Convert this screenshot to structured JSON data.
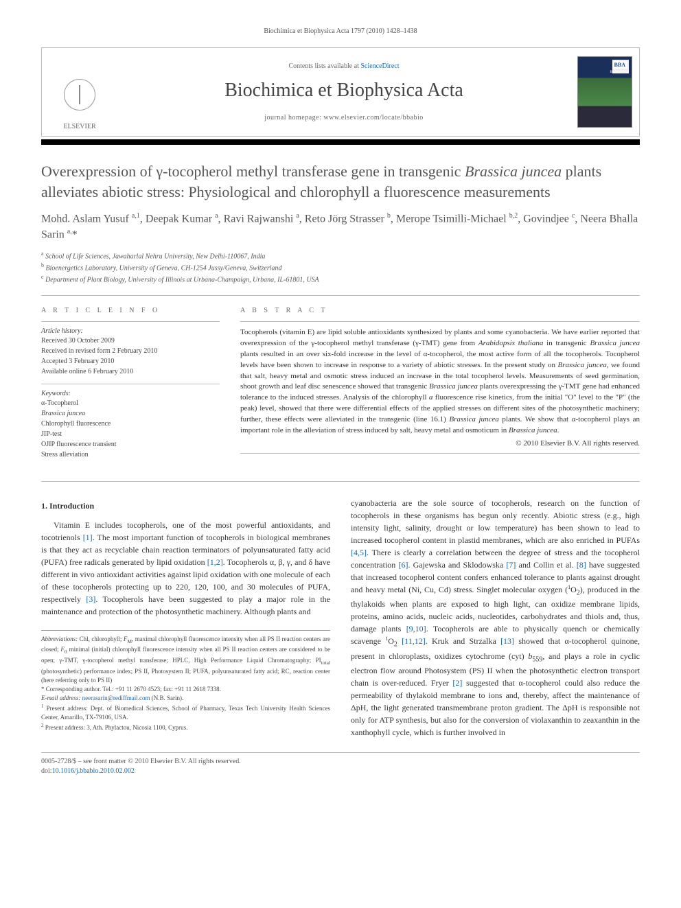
{
  "header": {
    "running": "Biochimica et Biophysica Acta 1797 (2010) 1428–1438",
    "contents_prefix": "Contents lists available at ",
    "contents_link": "ScienceDirect",
    "journal_name": "Biochimica et Biophysica Acta",
    "homepage_prefix": "journal homepage: ",
    "homepage_url": "www.elsevier.com/locate/bbabio",
    "publisher_label": "ELSEVIER",
    "cover_badge": "BBA",
    "cover_sub": "Bioenergetics"
  },
  "article": {
    "title_html": "Overexpression of γ-tocopherol methyl transferase gene in transgenic <span class=\"italic\">Brassica juncea</span> plants alleviates abiotic stress: Physiological and chlorophyll a fluorescence measurements",
    "authors_html": "Mohd. Aslam Yusuf <sup>a,1</sup>, Deepak Kumar <sup>a</sup>, Ravi Rajwanshi <sup>a</sup>, Reto Jörg Strasser <sup>b</sup>, Merope Tsimilli-Michael <sup>b,2</sup>, Govindjee <sup>c</sup>, Neera Bhalla Sarin <sup>a,</sup><span class=\"star\">*</span>",
    "affiliations": [
      {
        "sup": "a",
        "text": "School of Life Sciences, Jawaharlal Nehru University, New Delhi-110067, India"
      },
      {
        "sup": "b",
        "text": "Bioenergetics Laboratory, University of Geneva, CH-1254 Jussy/Geneva, Switzerland"
      },
      {
        "sup": "c",
        "text": "Department of Plant Biology, University of Illinois at Urbana-Champaign, Urbana, IL-61801, USA"
      }
    ]
  },
  "article_info": {
    "header": "A R T I C L E   I N F O",
    "history_label": "Article history:",
    "history": [
      "Received 30 October 2009",
      "Received in revised form 2 February 2010",
      "Accepted 3 February 2010",
      "Available online 6 February 2010"
    ],
    "keywords_label": "Keywords:",
    "keywords": [
      "α-Tocopherol",
      "Brassica juncea",
      "Chlorophyll fluorescence",
      "JIP-test",
      "OJIP fluorescence transient",
      "Stress alleviation"
    ]
  },
  "abstract": {
    "header": "A B S T R A C T",
    "text_html": "Tocopherols (vitamin E) are lipid soluble antioxidants synthesized by plants and some cyanobacteria. We have earlier reported that overexpression of the γ-tocopherol methyl transferase (γ-TMT) gene from <span class=\"italic\">Arabidopsis thaliana</span> in transgenic <span class=\"italic\">Brassica juncea</span> plants resulted in an over six-fold increase in the level of α-tocopherol, the most active form of all the tocopherols. Tocopherol levels have been shown to increase in response to a variety of abiotic stresses. In the present study on <span class=\"italic\">Brassica juncea</span>, we found that salt, heavy metal and osmotic stress induced an increase in the total tocopherol levels. Measurements of seed germination, shoot growth and leaf disc senescence showed that transgenic <span class=\"italic\">Brassica juncea</span> plants overexpressing the γ-TMT gene had enhanced tolerance to the induced stresses. Analysis of the chlorophyll <span class=\"italic\">a</span> fluorescence rise kinetics, from the initial \"O\" level to the \"P\" (the peak) level, showed that there were differential effects of the applied stresses on different sites of the photosynthetic machinery; further, these effects were alleviated in the transgenic (line 16.1) <span class=\"italic\">Brassica juncea</span> plants. We show that α-tocopherol plays an important role in the alleviation of stress induced by salt, heavy metal and osmoticum in <span class=\"italic\">Brassica juncea</span>.",
    "copyright": "© 2010 Elsevier B.V. All rights reserved."
  },
  "body": {
    "section_number": "1.",
    "section_title": "Introduction",
    "col1_html": "Vitamin E includes tocopherols, one of the most powerful antioxidants, and tocotrienols <a href=\"#\">[1]</a>. The most important function of tocopherols in biological membranes is that they act as recyclable chain reaction terminators of polyunsaturated fatty acid (PUFA) free radicals generated by lipid oxidation <a href=\"#\">[1,2]</a>. Tocopherols α, β, γ, and δ have different in vivo antioxidant activities against lipid oxidation with one molecule of each of these tocopherols protecting up to 220, 120, 100, and 30 molecules of PUFA, respectively <a href=\"#\">[3]</a>. Tocopherols have been suggested to play a major role in the maintenance and protection of the photosynthetic machinery. Although plants and",
    "col2_html": "cyanobacteria are the sole source of tocopherols, research on the function of tocopherols in these organisms has begun only recently. Abiotic stress (e.g., high intensity light, salinity, drought or low temperature) has been shown to lead to increased tocopherol content in plastid membranes, which are also enriched in PUFAs <a href=\"#\">[4,5]</a>. There is clearly a correlation between the degree of stress and the tocopherol concentration <a href=\"#\">[6]</a>. Gajewska and Sklodowska <a href=\"#\">[7]</a> and Collin et al. <a href=\"#\">[8]</a> have suggested that increased tocopherol content confers enhanced tolerance to plants against drought and heavy metal (Ni, Cu, Cd) stress. Singlet molecular oxygen (<sup>1</sup>O<sub>2</sub>), produced in the thylakoids when plants are exposed to high light, can oxidize membrane lipids, proteins, amino acids, nucleic acids, nucleotides, carbohydrates and thiols and, thus, damage plants <a href=\"#\">[9,10]</a>. Tocopherols are able to physically quench or chemically scavenge <sup>1</sup>O<sub>2</sub> <a href=\"#\">[11,12]</a>. Kruk and Strzalka <a href=\"#\">[13]</a> showed that α-tocopherol quinone, present in chloroplasts, oxidizes cytochrome (cyt) <span class=\"italic\">b</span><sub>559</sub>, and plays a role in cyclic electron flow around Photosystem (PS) II when the photosynthetic electron transport chain is over-reduced. Fryer <a href=\"#\">[2]</a> suggested that α-tocopherol could also reduce the permeability of thylakoid membrane to ions and, thereby, affect the maintenance of ΔpH, the light generated transmembrane proton gradient. The ΔpH is responsible not only for ATP synthesis, but also for the conversion of violaxanthin to zeaxanthin in the xanthophyll cycle, which is further involved in"
  },
  "footnotes": {
    "abbrev_html": "<span class=\"italic\">Abbreviations:</span> Chl, chlorophyll; <span class=\"italic\">F</span><sub>M</sub>, maximal chlorophyll fluorescence intensity when all PS II reaction centers are closed; <span class=\"italic\">F</span><sub>0</sub> minimal (initial) chlorophyll fluorescence intensity when all PS II reaction centers are considered to be open; γ-TMT, γ-tocopherol methyl transferase; HPLC, High Performance Liquid Chromatography; PI<sub>total</sub> (photosynthetic) performance index; PS II, Photosystem II; PUFA, polyunsaturated fatty acid; RC, reaction center (here referring only to PS II)",
    "corresponding": "* Corresponding author. Tel.: +91 11 2670 4523; fax: +91 11 2618 7338.",
    "email_label": "E-mail address:",
    "email_value": "neerasarin@rediffmail.com",
    "email_suffix": "(N.B. Sarin).",
    "note1": "Present address: Dept. of Biomedical Sciences, School of Pharmacy, Texas Tech University Health Sciences Center, Amarillo, TX-79106, USA.",
    "note2": "Present address: 3, Ath. Phylactou, Nicosia 1100, Cyprus."
  },
  "bottom": {
    "issn_line": "0005-2728/$ – see front matter © 2010 Elsevier B.V. All rights reserved.",
    "doi_prefix": "doi:",
    "doi_value": "10.1016/j.bbabio.2010.02.002"
  },
  "colors": {
    "link": "#1169b3",
    "rule": "#bbbbbb",
    "text": "#333333",
    "heading": "#555555"
  }
}
